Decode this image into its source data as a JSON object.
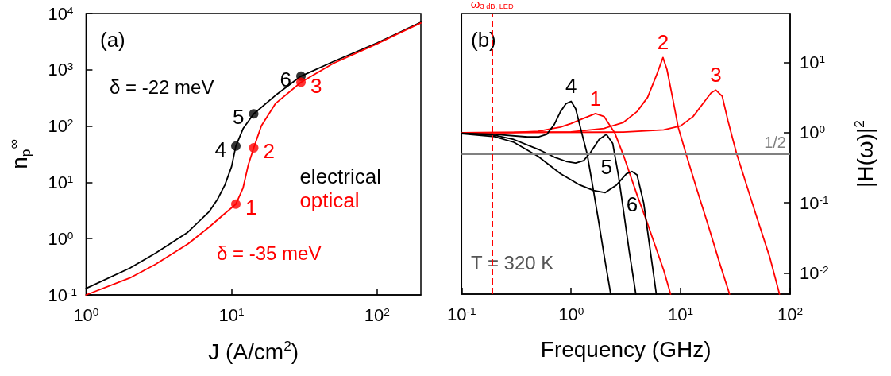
{
  "chart_data": [
    {
      "type": "line",
      "xlabel": "J (A/cm$^{2}$)",
      "ylabel": "n$_{p}$$^{∞}$",
      "log": "xy",
      "xlim": [
        1,
        200
      ],
      "ylim": [
        0.1,
        10000
      ],
      "xticks": [
        {
          "value": 1,
          "label": "10$^{0}$"
        },
        {
          "value": 10,
          "label": "10$^{1}$"
        },
        {
          "value": 100,
          "label": "10$^{2}$"
        }
      ],
      "yticks": [
        {
          "value": 0.1,
          "label": "10$^{-1}$"
        },
        {
          "value": 1,
          "label": "10$^{0}$"
        },
        {
          "value": 10,
          "label": "10$^{1}$"
        },
        {
          "value": 100,
          "label": "10$^{2}$"
        },
        {
          "value": 1000,
          "label": "10$^{3}$"
        },
        {
          "value": 10000,
          "label": "10$^{4}$"
        }
      ],
      "legend": "right",
      "annotations": [
        "(a)",
        "δ = -22 meV",
        "δ = -35 meV",
        {
          "text": "4",
          "x": 10.7,
          "y": 44
        },
        {
          "text": "5",
          "x": 14.2,
          "y": 165
        },
        {
          "text": "6",
          "x": 30,
          "y": 770
        },
        {
          "text": "1",
          "x": 10.7,
          "y": 4.1
        },
        {
          "text": "2",
          "x": 14.2,
          "y": 41
        },
        {
          "text": "3",
          "x": 30,
          "y": 600
        }
      ],
      "series": [
        {
          "name": "electrical",
          "color": "#000000",
          "x": [
            1,
            2,
            3,
            5,
            7,
            8,
            9,
            10,
            10.7,
            12,
            14.2,
            20,
            30,
            50,
            100,
            200
          ],
          "values": [
            0.13,
            0.3,
            0.55,
            1.3,
            3,
            5,
            9,
            19,
            44,
            90,
            165,
            350,
            770,
            1400,
            3000,
            7000
          ]
        },
        {
          "name": "optical",
          "color": "#ff0000",
          "x": [
            1,
            2,
            3,
            5,
            7,
            9,
            10.7,
            12,
            13,
            14.2,
            16,
            20,
            30,
            50,
            100,
            200
          ],
          "values": [
            0.1,
            0.2,
            0.35,
            0.8,
            1.6,
            2.8,
            4.1,
            8,
            20,
            41,
            100,
            250,
            600,
            1300,
            2900,
            6800
          ]
        },
        {
          "type": "scatter",
          "color": "#000000",
          "x": [
            10.7,
            14.2,
            30
          ],
          "values": [
            44,
            165,
            770
          ]
        },
        {
          "type": "scatter",
          "color": "#ff0000",
          "x": [
            10.7,
            14.2,
            30
          ],
          "values": [
            4.1,
            41,
            600
          ]
        }
      ]
    },
    {
      "type": "line",
      "xlabel": "Frequency (GHz)",
      "ylabel": "|H(ω)|$^{2}$",
      "log": "xy",
      "xlim": [
        0.1,
        100
      ],
      "ylim": [
        0.005,
        50
      ],
      "xticks": [
        {
          "value": 0.1,
          "label": "10$^{-1}$"
        },
        {
          "value": 1,
          "label": "10$^{0}$"
        },
        {
          "value": 10,
          "label": "10$^{1}$"
        },
        {
          "value": 100,
          "label": "10$^{2}$"
        }
      ],
      "yticks": [
        {
          "value": 0.01,
          "label": "10$^{-2}$"
        },
        {
          "value": 0.1,
          "label": "10$^{-1}$"
        },
        {
          "value": 1,
          "label": "10$^{0}$"
        },
        {
          "value": 10,
          "label": "10$^{1}$"
        }
      ],
      "annotations": [
        "(b)",
        "T = 320 K"
      ],
      "ref_lines": [
        {
          "axis": "y",
          "value": 0.5,
          "label": "1/2",
          "color": "#808080"
        },
        {
          "axis": "x",
          "value": 0.19,
          "label": "ω$_{3 dB, LED}$",
          "color": "#ff0000",
          "line_style": "dashed"
        }
      ],
      "series": [
        {
          "name": "1",
          "color": "#ff0000",
          "x": [
            0.1,
            0.3,
            0.5,
            0.8,
            1,
            1.3,
            1.67,
            2,
            2.5,
            3,
            4,
            5,
            6,
            7,
            8.1
          ],
          "values": [
            1,
            1.01,
            1.05,
            1.2,
            1.35,
            1.6,
            1.87,
            1.7,
            1,
            0.48,
            0.13,
            0.05,
            0.022,
            0.011,
            0.005
          ]
        },
        {
          "name": "2",
          "color": "#ff0000",
          "x": [
            0.1,
            1,
            2,
            3,
            4,
            5,
            6,
            6.9,
            7.5,
            8.5,
            9.5,
            11.2,
            14,
            18,
            23,
            28
          ],
          "values": [
            1,
            1.03,
            1.15,
            1.4,
            2,
            3.2,
            6.5,
            11.8,
            8,
            3,
            1.2,
            0.5,
            0.16,
            0.046,
            0.013,
            0.005
          ]
        },
        {
          "name": "3",
          "color": "#ff0000",
          "x": [
            0.1,
            3,
            7,
            10,
            13,
            16,
            19,
            21,
            24,
            27,
            30,
            32.5,
            40,
            50,
            65,
            80
          ],
          "values": [
            1,
            1.02,
            1.1,
            1.25,
            1.7,
            2.6,
            3.7,
            4.05,
            3.3,
            1.5,
            0.8,
            0.5,
            0.18,
            0.06,
            0.017,
            0.005
          ]
        },
        {
          "name": "4",
          "color": "#000000",
          "x": [
            0.1,
            0.2,
            0.4,
            0.5,
            0.6,
            0.7,
            0.8,
            0.9,
            1,
            1.1,
            1.25,
            1.4,
            1.6,
            1.8,
            2,
            2.3
          ],
          "values": [
            0.98,
            0.95,
            0.87,
            0.87,
            0.95,
            1.3,
            2,
            2.6,
            2.8,
            2.2,
            1,
            0.5,
            0.15,
            0.05,
            0.018,
            0.005
          ]
        },
        {
          "name": "5",
          "color": "#000000",
          "x": [
            0.1,
            0.2,
            0.3,
            0.5,
            0.7,
            0.9,
            1.1,
            1.3,
            1.5,
            1.8,
            2.1,
            2.4,
            2.7,
            3,
            3.4,
            3.9
          ],
          "values": [
            0.98,
            0.92,
            0.8,
            0.58,
            0.45,
            0.39,
            0.37,
            0.4,
            0.52,
            0.8,
            0.95,
            0.7,
            0.25,
            0.08,
            0.02,
            0.005
          ]
        },
        {
          "name": "6",
          "color": "#000000",
          "x": [
            0.1,
            0.2,
            0.3,
            0.5,
            0.8,
            1.2,
            1.6,
            2.05,
            2.6,
            3.2,
            3.6,
            4,
            4.6,
            5.2,
            6
          ],
          "values": [
            0.97,
            0.88,
            0.73,
            0.46,
            0.26,
            0.18,
            0.15,
            0.14,
            0.18,
            0.26,
            0.28,
            0.25,
            0.1,
            0.025,
            0.005
          ]
        }
      ]
    }
  ]
}
